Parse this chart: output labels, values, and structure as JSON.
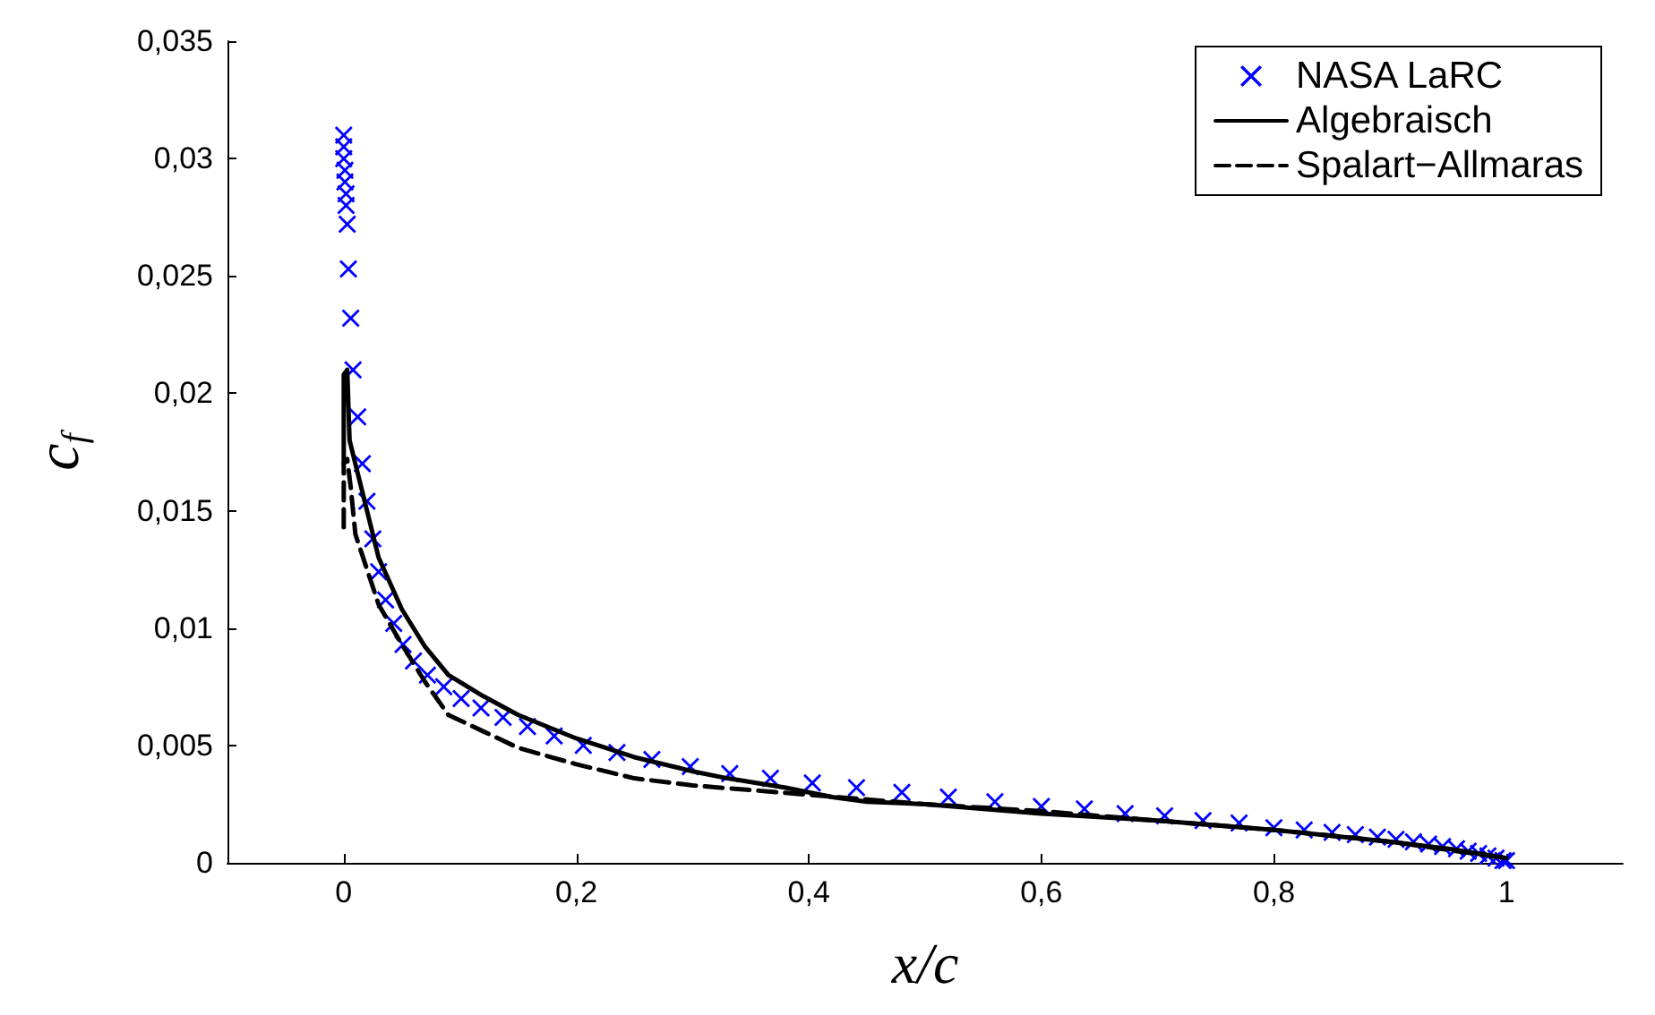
{
  "chart_data": {
    "type": "line",
    "xlabel": "x/c",
    "ylabel": "c$_{f}$",
    "legend": "top right",
    "grid": false,
    "xlim": [
      -0.1,
      1.1
    ],
    "ylim": [
      0,
      0.035
    ],
    "xticks": [
      {
        "value": 0,
        "label": "0"
      },
      {
        "value": 0.2,
        "label": "0,2"
      },
      {
        "value": 0.4,
        "label": "0,4"
      },
      {
        "value": 0.6,
        "label": "0,6"
      },
      {
        "value": 0.8,
        "label": "0,8"
      },
      {
        "value": 1,
        "label": "1"
      }
    ],
    "yticks": [
      {
        "value": 0,
        "label": "0"
      },
      {
        "value": 0.005,
        "label": "0,005"
      },
      {
        "value": 0.01,
        "label": "0,01"
      },
      {
        "value": 0.015,
        "label": "0,015"
      },
      {
        "value": 0.02,
        "label": "0,02"
      },
      {
        "value": 0.025,
        "label": "0,025"
      },
      {
        "value": 0.03,
        "label": "0,03"
      },
      {
        "value": 0.035,
        "label": "0,035"
      }
    ],
    "series": [
      {
        "name": "NASA LaRC",
        "type": "scatter",
        "marker": "cross",
        "color": "#0000ff",
        "x": [
          0,
          0,
          0,
          0.001,
          0.001,
          0.002,
          0.002,
          0.003,
          0.004,
          0.006,
          0.008,
          0.012,
          0.016,
          0.02,
          0.025,
          0.03,
          0.036,
          0.043,
          0.051,
          0.06,
          0.072,
          0.086,
          0.101,
          0.118,
          0.137,
          0.158,
          0.181,
          0.206,
          0.235,
          0.265,
          0.298,
          0.332,
          0.367,
          0.403,
          0.441,
          0.48,
          0.52,
          0.56,
          0.6,
          0.637,
          0.672,
          0.706,
          0.739,
          0.77,
          0.8,
          0.826,
          0.85,
          0.87,
          0.889,
          0.905,
          0.92,
          0.933,
          0.945,
          0.957,
          0.967,
          0.976,
          0.984,
          0.991,
          0.997,
          1.0
        ],
        "values": [
          0.031,
          0.0305,
          0.03,
          0.0295,
          0.029,
          0.0285,
          0.028,
          0.0272,
          0.0253,
          0.0232,
          0.021,
          0.019,
          0.017,
          0.0154,
          0.0138,
          0.0124,
          0.0112,
          0.0102,
          0.0093,
          0.0086,
          0.008,
          0.0075,
          0.007,
          0.0066,
          0.0062,
          0.0058,
          0.0054,
          0.005,
          0.0047,
          0.0044,
          0.0041,
          0.0038,
          0.0036,
          0.0034,
          0.0032,
          0.003,
          0.0028,
          0.0026,
          0.0024,
          0.0023,
          0.0021,
          0.002,
          0.0018,
          0.0017,
          0.0015,
          0.0014,
          0.0013,
          0.0012,
          0.0011,
          0.001,
          0.0009,
          0.0008,
          0.0007,
          0.0006,
          0.0005,
          0.0004,
          0.0003,
          0.0002,
          0.0001,
          0.0001
        ]
      },
      {
        "name": "Algebraisch",
        "marker": "none",
        "line_style": "solid",
        "color": "#000000",
        "x": [
          0,
          0,
          0.003,
          0.005,
          0.01,
          0.02,
          0.03,
          0.05,
          0.07,
          0.09,
          0.12,
          0.15,
          0.2,
          0.25,
          0.3,
          0.33,
          0.38,
          0.4,
          0.42,
          0.45,
          0.5,
          0.55,
          0.6,
          0.7,
          0.8,
          0.9,
          0.95,
          1.0
        ],
        "values": [
          0.017,
          0.0208,
          0.021,
          0.018,
          0.017,
          0.015,
          0.013,
          0.0108,
          0.0092,
          0.008,
          0.0071,
          0.0063,
          0.0053,
          0.0045,
          0.0039,
          0.0036,
          0.0032,
          0.003,
          0.0028,
          0.0026,
          0.0025,
          0.0023,
          0.0021,
          0.0018,
          0.0014,
          0.0009,
          0.0006,
          0.0002
        ]
      },
      {
        "name": "Spalart−Allmaras",
        "marker": "none",
        "line_style": "dashed",
        "color": "#000000",
        "x": [
          0,
          0,
          0.003,
          0.006,
          0.01,
          0.02,
          0.03,
          0.05,
          0.07,
          0.09,
          0.12,
          0.15,
          0.2,
          0.25,
          0.3,
          0.35,
          0.4,
          0.45,
          0.5,
          0.6,
          0.7,
          0.8,
          0.9,
          1.0
        ],
        "values": [
          0.0143,
          0.017,
          0.0172,
          0.016,
          0.014,
          0.0125,
          0.011,
          0.0093,
          0.0077,
          0.0063,
          0.0056,
          0.0049,
          0.0042,
          0.0036,
          0.0033,
          0.0031,
          0.0029,
          0.0027,
          0.0025,
          0.0022,
          0.0018,
          0.0014,
          0.0009,
          0.0002
        ]
      }
    ]
  }
}
